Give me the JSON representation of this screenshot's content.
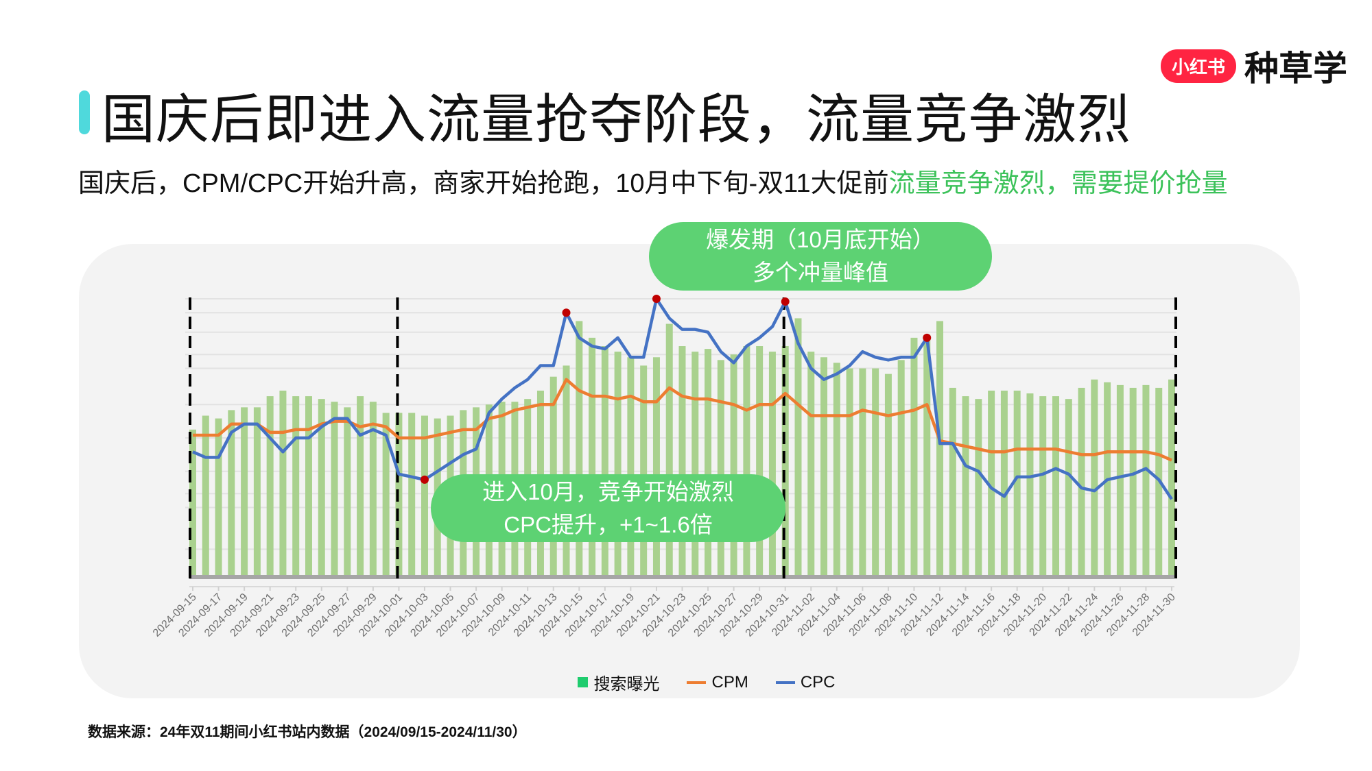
{
  "header": {
    "title": "国庆后即进入流量抢夺阶段，流量竞争激烈",
    "subtitle_plain": "国庆后，CPM/CPC开始升高，商家开始抢跑，10月中下旬-双11大促前",
    "subtitle_highlight": "流量竞争激烈，需要提价抢量",
    "accent_color": "#4fd9dc",
    "highlight_color": "#3cc25a"
  },
  "logo": {
    "badge": "小红书",
    "word": "种草学"
  },
  "annotations": {
    "burst_line1": "爆发期（10月底开始）",
    "burst_line2": "多个冲量峰值",
    "october_line1": "进入10月，竞争开始激烈",
    "october_line2": "CPC提升，+1~1.6倍"
  },
  "source": "数据来源：24年双11期间小红书站内数据（2024/09/15-2024/11/30）",
  "chart_data": {
    "type": "bar+line",
    "title": "",
    "xlabel": "",
    "ylabel": "",
    "ylim": [
      0,
      100
    ],
    "y_axis_labels_shown": false,
    "grid": true,
    "legend_position": "bottom",
    "x_start": "2024-09-15",
    "x_end": "2024-11-30",
    "x_tick_every_days": 2,
    "phase_dividers": [
      "2024-09-15",
      "2024-10-01",
      "2024-10-31",
      "2024-11-30"
    ],
    "highlighted_points": {
      "series": "CPC",
      "dates": [
        "2024-10-03",
        "2024-10-14",
        "2024-10-21",
        "2024-10-31",
        "2024-11-11"
      ]
    },
    "colors": {
      "搜索曝光": "#a9d18e",
      "搜索曝光_legend": "#1fcc6e",
      "CPM": "#ed7d31",
      "CPC": "#4472c4",
      "highlight": "#c00000",
      "divider": "#000000"
    },
    "series": [
      {
        "name": "搜索曝光",
        "type": "bar",
        "values": [
          53,
          58,
          57,
          60,
          61,
          61,
          65,
          67,
          65,
          65,
          64,
          63,
          61,
          65,
          63,
          59,
          59,
          59,
          58,
          57,
          58,
          60,
          61,
          62,
          63,
          63,
          64,
          67,
          72,
          76,
          92,
          86,
          83,
          81,
          79,
          76,
          79,
          91,
          83,
          81,
          82,
          78,
          80,
          83,
          83,
          81,
          83,
          93,
          81,
          79,
          77,
          75,
          75,
          75,
          73,
          78,
          86,
          87,
          92,
          68,
          65,
          64,
          67,
          67,
          67,
          66,
          65,
          65,
          64,
          68,
          71,
          70,
          69,
          68,
          69,
          68,
          71
        ]
      },
      {
        "name": "CPM",
        "type": "line",
        "values": [
          51,
          51,
          51,
          55,
          55,
          55,
          52,
          52,
          53,
          53,
          55,
          56,
          56,
          54,
          55,
          54,
          50,
          50,
          50,
          51,
          52,
          53,
          53,
          57,
          58,
          60,
          61,
          62,
          62,
          71,
          67,
          65,
          65,
          64,
          65,
          63,
          63,
          68,
          65,
          64,
          64,
          63,
          62,
          60,
          62,
          62,
          66,
          62,
          58,
          58,
          58,
          58,
          60,
          59,
          58,
          59,
          60,
          62,
          49,
          48,
          47,
          46,
          45,
          45,
          46,
          46,
          46,
          46,
          45,
          44,
          44,
          45,
          45,
          45,
          45,
          44,
          42
        ]
      },
      {
        "name": "CPC",
        "type": "line",
        "values": [
          45,
          43,
          43,
          52,
          55,
          55,
          50,
          45,
          50,
          50,
          54,
          57,
          57,
          51,
          53,
          51,
          37,
          36,
          35,
          38,
          41,
          44,
          46,
          59,
          64,
          68,
          71,
          76,
          76,
          95,
          86,
          83,
          82,
          86,
          79,
          79,
          100,
          93,
          89,
          89,
          88,
          81,
          77,
          83,
          86,
          90,
          99,
          84,
          75,
          71,
          73,
          76,
          81,
          79,
          78,
          79,
          79,
          86,
          48,
          48,
          40,
          38,
          32,
          29,
          36,
          36,
          37,
          39,
          37,
          32,
          31,
          35,
          36,
          37,
          39,
          35,
          28
        ]
      }
    ]
  }
}
